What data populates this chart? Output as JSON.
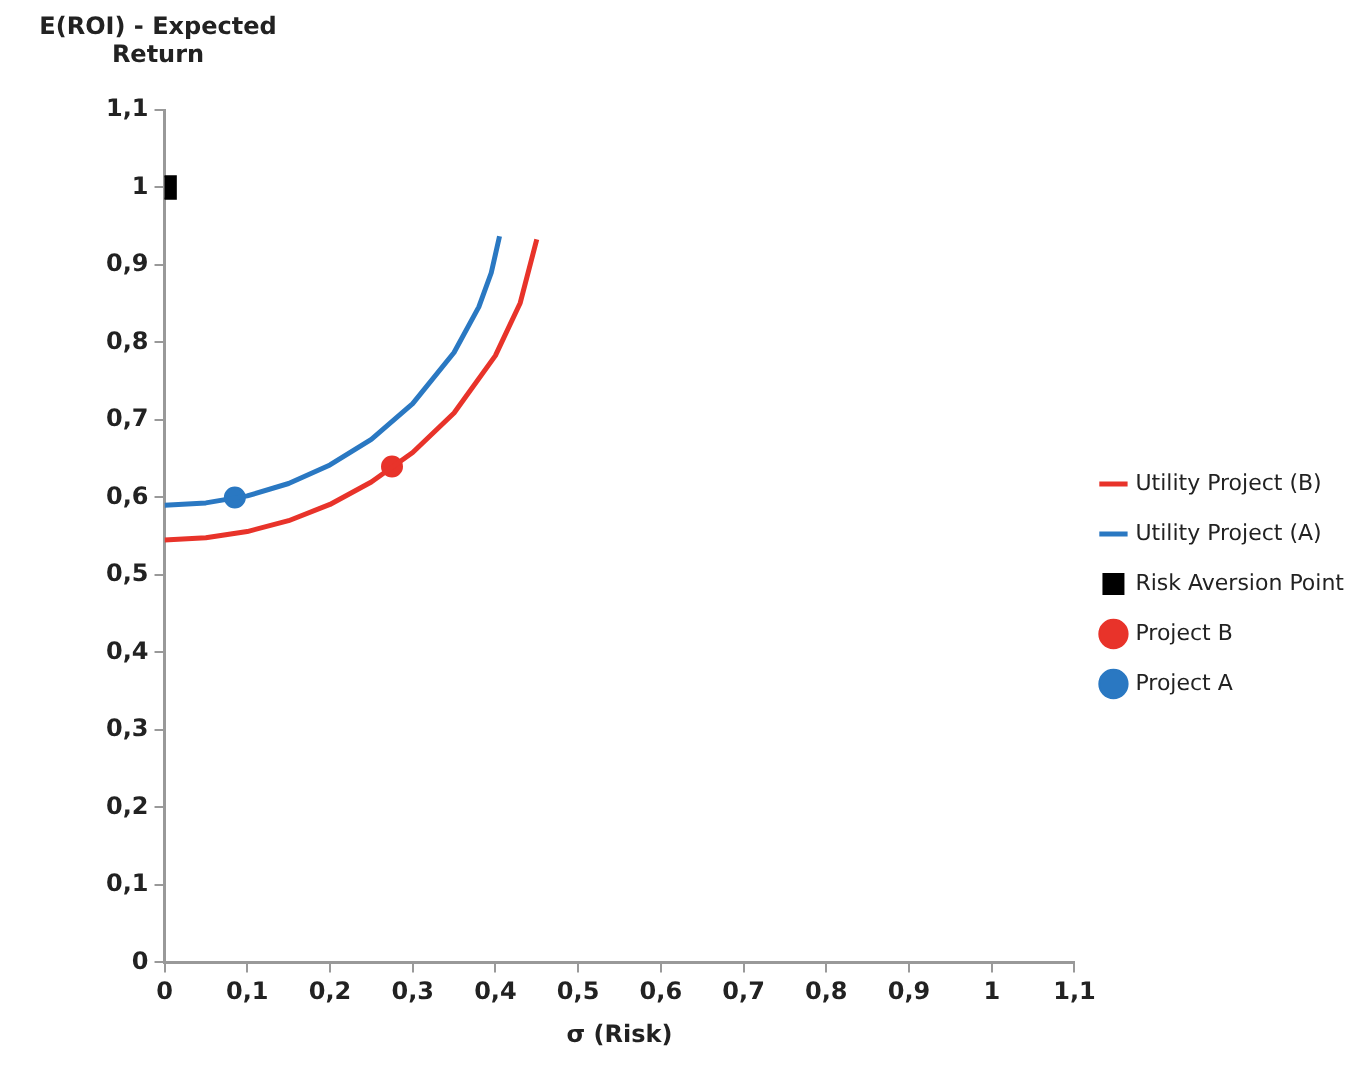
{
  "chart_data": {
    "type": "line",
    "ylabel": "E(ROI) - Expected Return",
    "xlabel": "σ (Risk)",
    "xlim": [
      0,
      1.1
    ],
    "ylim": [
      0,
      1.1
    ],
    "xticks": [
      0,
      {
        "value": 0.1,
        "label": "0,1"
      },
      {
        "value": 0.2,
        "label": "0,2"
      },
      {
        "value": 0.3,
        "label": "0,3"
      },
      {
        "value": 0.4,
        "label": "0,4"
      },
      {
        "value": 0.5,
        "label": "0,5"
      },
      {
        "value": 0.6,
        "label": "0,6"
      },
      {
        "value": 0.7,
        "label": "0,7"
      },
      {
        "value": 0.8,
        "label": "0,8"
      },
      {
        "value": 0.9,
        "label": "0,9"
      },
      1,
      {
        "value": 1.1,
        "label": "1,1"
      }
    ],
    "yticks": [
      0,
      {
        "value": 0.1,
        "label": "0,1"
      },
      {
        "value": 0.2,
        "label": "0,2"
      },
      {
        "value": 0.3,
        "label": "0,3"
      },
      {
        "value": 0.4,
        "label": "0,4"
      },
      {
        "value": 0.5,
        "label": "0,5"
      },
      {
        "value": 0.6,
        "label": "0,6"
      },
      {
        "value": 0.7,
        "label": "0,7"
      },
      {
        "value": 0.8,
        "label": "0,8"
      },
      {
        "value": 0.9,
        "label": "0,9"
      },
      1,
      {
        "value": 1.1,
        "label": "1,1"
      }
    ],
    "legend": "right",
    "marker": "none",
    "series": [
      {
        "name": "Utility Project (B)",
        "type": "line",
        "color": "#e8332a",
        "x": [
          0,
          0.05,
          0.1,
          0.15,
          0.2,
          0.25,
          0.3,
          0.35,
          0.4,
          0.43,
          0.45
        ],
        "values": [
          0.545,
          0.548,
          0.556,
          0.57,
          0.591,
          0.62,
          0.658,
          0.709,
          0.783,
          0.851,
          0.933
        ]
      },
      {
        "name": "Utility Project (A)",
        "type": "line",
        "color": "#2a78c2",
        "x": [
          0,
          0.05,
          0.1,
          0.15,
          0.2,
          0.25,
          0.3,
          0.35,
          0.38,
          0.395,
          0.405
        ],
        "values": [
          0.59,
          0.593,
          0.602,
          0.618,
          0.642,
          0.675,
          0.721,
          0.787,
          0.846,
          0.89,
          0.937
        ]
      },
      {
        "name": "Risk Aversion Point",
        "type": "scatter",
        "marker": "square",
        "color": "#000000",
        "x": [
          0
        ],
        "values": [
          1
        ]
      },
      {
        "name": "Project B",
        "type": "scatter",
        "marker": "circle",
        "color": "#e8332a",
        "x": [
          0.275
        ],
        "values": [
          0.64
        ]
      },
      {
        "name": "Project A",
        "type": "scatter",
        "marker": "circle",
        "color": "#2a78c2",
        "x": [
          0.085
        ],
        "values": [
          0.6
        ]
      }
    ]
  }
}
